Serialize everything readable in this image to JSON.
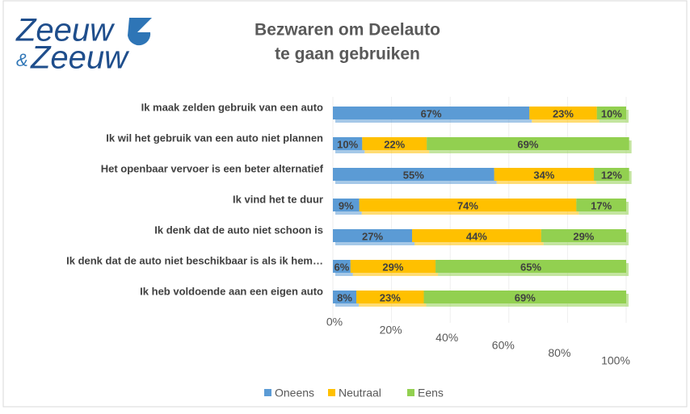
{
  "logo": {
    "line1": "Zeeuw",
    "amp": "&",
    "line2": "Zeeuw"
  },
  "chart_data": {
    "type": "stacked-bar-horizontal",
    "title": [
      "Bezwaren om Deelauto",
      "te gaan gebruiken"
    ],
    "categories": [
      "Ik maak zelden gebruik van een auto",
      "Ik wil het gebruik van een auto niet plannen",
      "Het openbaar vervoer is een beter alternatief",
      "Ik vind het te duur",
      "Ik denk dat de auto niet schoon is",
      "Ik denk dat de auto niet beschikbaar is als ik hem…",
      "Ik heb voldoende aan een eigen auto"
    ],
    "series": [
      {
        "name": "Oneens",
        "color": "#5b9bd5",
        "values": [
          67,
          10,
          55,
          9,
          27,
          6,
          8
        ],
        "value_labels": [
          "67%",
          "10%",
          "55%",
          "9%",
          "27%",
          "6%",
          "8%"
        ]
      },
      {
        "name": "Neutraal",
        "color": "#ffc000",
        "values": [
          23,
          22,
          34,
          74,
          44,
          29,
          23
        ],
        "value_labels": [
          "23%",
          "22%",
          "34%",
          "74%",
          "44%",
          "29%",
          "23%"
        ]
      },
      {
        "name": "Eens",
        "color": "#92d050",
        "values": [
          10,
          69,
          12,
          17,
          29,
          65,
          69
        ],
        "value_labels": [
          "10%",
          "69%",
          "12%",
          "17%",
          "29%",
          "65%",
          "69%"
        ]
      }
    ],
    "xlim": [
      0,
      100
    ],
    "xticks": [
      {
        "value": 0,
        "label": "0%"
      },
      {
        "value": 20,
        "label": "20%"
      },
      {
        "value": 40,
        "label": "40%"
      },
      {
        "value": 60,
        "label": "60%"
      },
      {
        "value": 80,
        "label": "80%"
      },
      {
        "value": 100,
        "label": "100%"
      }
    ],
    "legend": "bottom"
  }
}
